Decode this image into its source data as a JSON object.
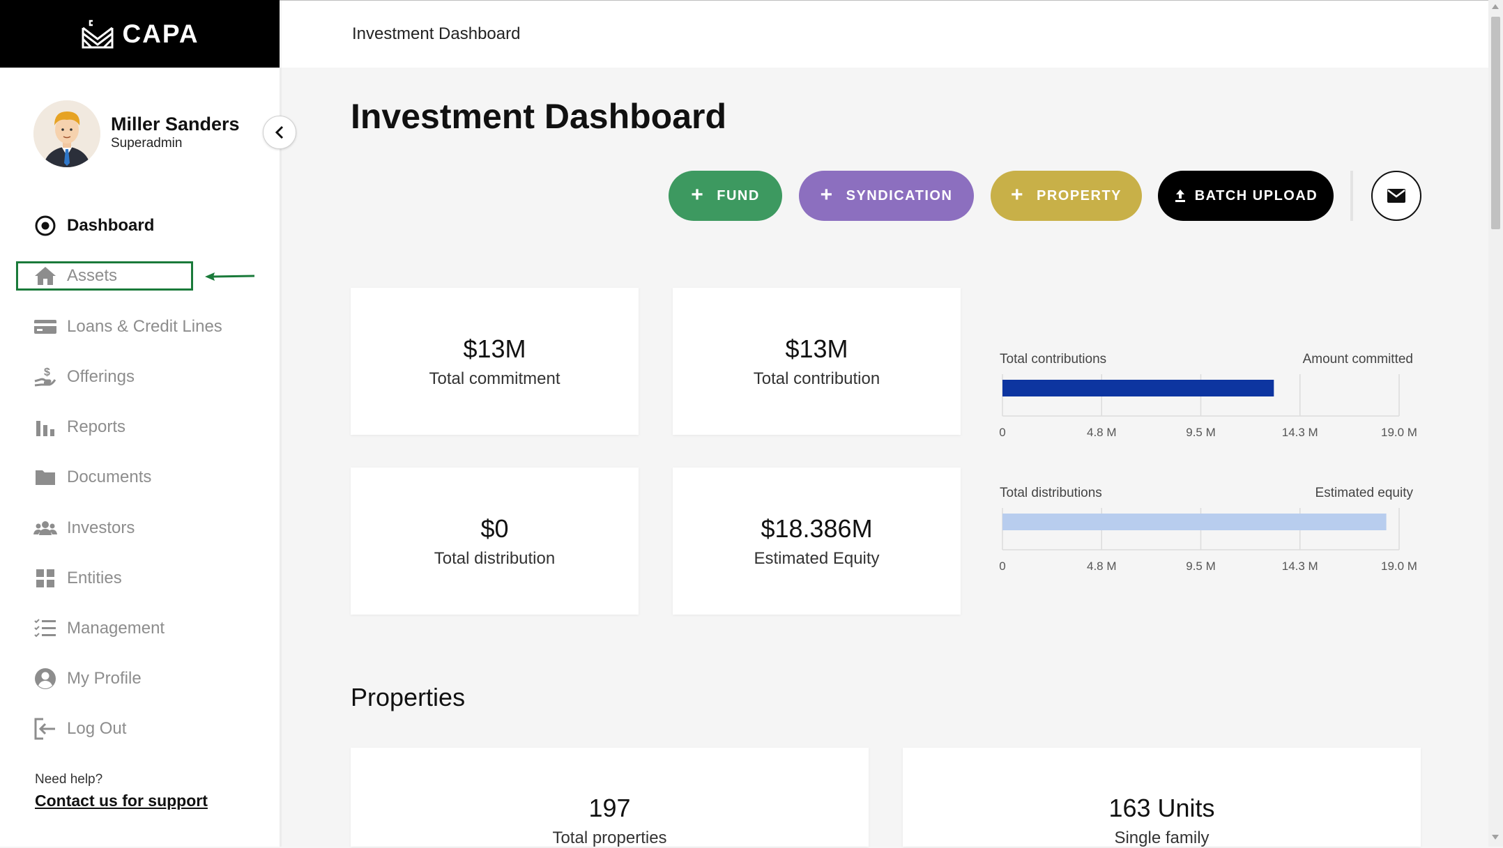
{
  "brand": {
    "name": "CAPA"
  },
  "user": {
    "name": "Miller Sanders",
    "role": "Superadmin"
  },
  "nav": {
    "items": [
      {
        "label": "Dashboard",
        "icon": "target-icon",
        "active": true
      },
      {
        "label": "Assets",
        "icon": "home-icon",
        "active": false
      },
      {
        "label": "Loans & Credit Lines",
        "icon": "credit-card-icon",
        "active": false
      },
      {
        "label": "Offerings",
        "icon": "hand-dollar-icon",
        "active": false
      },
      {
        "label": "Reports",
        "icon": "bar-chart-icon",
        "active": false
      },
      {
        "label": "Documents",
        "icon": "folder-icon",
        "active": false
      },
      {
        "label": "Investors",
        "icon": "users-icon",
        "active": false
      },
      {
        "label": "Entities",
        "icon": "grid-icon",
        "active": false
      },
      {
        "label": "Management",
        "icon": "checklist-icon",
        "active": false
      },
      {
        "label": "My Profile",
        "icon": "user-circle-icon",
        "active": false
      },
      {
        "label": "Log Out",
        "icon": "logout-icon",
        "active": false
      }
    ]
  },
  "help": {
    "label": "Need help?",
    "link": "Contact us for support"
  },
  "header": {
    "title": "Investment Dashboard"
  },
  "page": {
    "title": "Investment Dashboard"
  },
  "actions": {
    "fund": "FUND",
    "syndication": "SYNDICATION",
    "property": "PROPERTY",
    "batch_upload": "BATCH UPLOAD"
  },
  "stats": {
    "total_commitment": {
      "value": "$13M",
      "label": "Total commitment"
    },
    "total_contribution": {
      "value": "$13M",
      "label": "Total contribution"
    },
    "total_distribution": {
      "value": "$0",
      "label": "Total distribution"
    },
    "estimated_equity": {
      "value": "$18.386M",
      "label": "Estimated Equity"
    }
  },
  "chart_data": [
    {
      "type": "bar",
      "left_label": "Total contributions",
      "right_label": "Amount committed",
      "value": 13000000,
      "xlim": [
        0,
        19000000
      ],
      "ticks": [
        "0",
        "4.8 M",
        "9.5 M",
        "14.3 M",
        "19.0 M"
      ],
      "color": "#0d35a0"
    },
    {
      "type": "bar",
      "left_label": "Total distributions",
      "right_label": "Estimated equity",
      "value": 18386000,
      "xlim": [
        0,
        19000000
      ],
      "ticks": [
        "0",
        "4.8 M",
        "9.5 M",
        "14.3 M",
        "19.0 M"
      ],
      "color": "#b8cdee"
    }
  ],
  "properties": {
    "title": "Properties",
    "total": {
      "value": "197",
      "label": "Total properties"
    },
    "single_family": {
      "value": "163 Units",
      "label": "Single family"
    }
  },
  "colors": {
    "fund": "#3d9960",
    "syndication": "#8c6fbf",
    "property": "#c8b048",
    "batch": "#000000",
    "highlight": "#1a7a3a"
  }
}
